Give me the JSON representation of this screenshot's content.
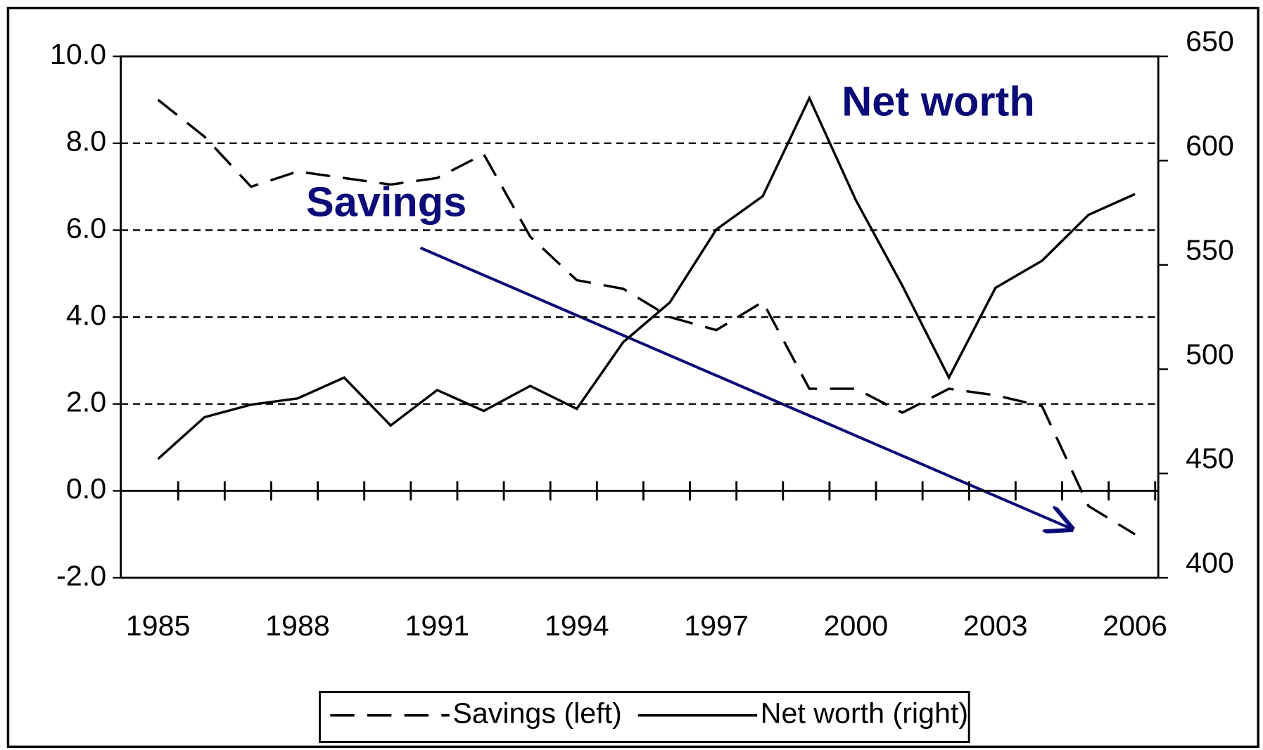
{
  "chart_data": {
    "type": "line",
    "x": [
      1985,
      1986,
      1987,
      1988,
      1989,
      1990,
      1991,
      1992,
      1993,
      1994,
      1995,
      1996,
      1997,
      1998,
      1999,
      2000,
      2001,
      2002,
      2003,
      2004,
      2005,
      2006
    ],
    "xlim": [
      1984.2,
      2006.5
    ],
    "xticks": [
      1985,
      1988,
      1991,
      1994,
      1997,
      2000,
      2003,
      2006
    ],
    "ylim": [
      -2,
      10
    ],
    "yticks": [
      {
        "value": -2,
        "label": "-2.0"
      },
      {
        "value": 0,
        "label": "0.0"
      },
      {
        "value": 2,
        "label": "2.0"
      },
      {
        "value": 4,
        "label": "4.0"
      },
      {
        "value": 6,
        "label": "6.0"
      },
      {
        "value": 8,
        "label": "8.0"
      },
      {
        "value": 10,
        "label": "10.0"
      }
    ],
    "y2lim": [
      400,
      650
    ],
    "y2ticks": [
      400,
      450,
      500,
      550,
      600,
      650
    ],
    "grid": true,
    "legend": "bottom",
    "series": [
      {
        "name": "Savings (left)",
        "color": "#000000",
        "line_style": "dashed",
        "values": [
          9.0,
          8.15,
          7.0,
          7.35,
          7.2,
          7.05,
          7.2,
          7.75,
          5.85,
          4.85,
          4.65,
          4.0,
          3.7,
          4.35,
          2.35,
          2.35,
          1.8,
          2.35,
          2.2,
          1.95,
          -0.35,
          -1.0
        ]
      },
      {
        "name": "Net worth (right)",
        "color": "#000000",
        "line_style": "solid",
        "axis": "y2",
        "values": [
          457,
          477,
          483,
          486,
          496,
          473,
          490,
          480,
          492,
          481,
          513,
          532,
          567,
          583,
          630,
          581,
          540,
          496,
          539,
          552,
          574,
          584
        ]
      }
    ],
    "annotations": [
      "Net worth",
      "Savings"
    ]
  }
}
